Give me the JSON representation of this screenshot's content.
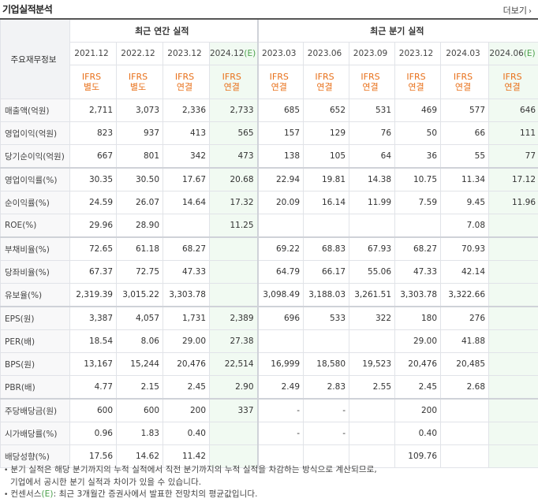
{
  "header": {
    "title": "기업실적분석",
    "more_label": "더보기",
    "more_icon": "chevron-right-icon"
  },
  "table": {
    "corner_label": "주요재무정보",
    "annual_group": "최근 연간 실적",
    "quarter_group": "최근 분기 실적",
    "annual_periods": [
      "2021.12",
      "2022.12",
      "2023.12"
    ],
    "annual_estimate_period": "2024.12",
    "quarter_periods": [
      "2023.03",
      "2023.06",
      "2023.09",
      "2023.12",
      "2024.03"
    ],
    "quarter_estimate_period": "2024.06",
    "estimate_mark": "(E)",
    "basis_top": "IFRS",
    "basis": [
      "별도",
      "별도",
      "연결",
      "연결",
      "연결",
      "연결",
      "연결",
      "연결",
      "연결",
      "연결"
    ],
    "rows": [
      {
        "label": "매출액(억원)",
        "values": [
          "2,711",
          "3,073",
          "2,336",
          "2,733",
          "685",
          "652",
          "531",
          "469",
          "577",
          "646"
        ]
      },
      {
        "label": "영업이익(억원)",
        "values": [
          "823",
          "937",
          "413",
          "565",
          "157",
          "129",
          "76",
          "50",
          "66",
          "111"
        ]
      },
      {
        "label": "당기순이익(억원)",
        "values": [
          "667",
          "801",
          "342",
          "473",
          "138",
          "105",
          "64",
          "36",
          "55",
          "77"
        ]
      },
      {
        "label": "영업이익률(%)",
        "values": [
          "30.35",
          "30.50",
          "17.67",
          "20.68",
          "22.94",
          "19.81",
          "14.38",
          "10.75",
          "11.34",
          "17.12"
        ]
      },
      {
        "label": "순이익률(%)",
        "values": [
          "24.59",
          "26.07",
          "14.64",
          "17.32",
          "20.09",
          "16.14",
          "11.99",
          "7.59",
          "9.45",
          "11.96"
        ]
      },
      {
        "label": "ROE(%)",
        "values": [
          "29.96",
          "28.90",
          "",
          "11.25",
          "",
          "",
          "",
          "",
          "7.08",
          ""
        ]
      },
      {
        "label": "부채비율(%)",
        "values": [
          "72.65",
          "61.18",
          "68.27",
          "",
          "69.22",
          "68.83",
          "67.93",
          "68.27",
          "70.93",
          ""
        ]
      },
      {
        "label": "당좌비율(%)",
        "values": [
          "67.37",
          "72.75",
          "47.33",
          "",
          "64.79",
          "66.17",
          "55.06",
          "47.33",
          "42.14",
          ""
        ]
      },
      {
        "label": "유보율(%)",
        "values": [
          "2,319.39",
          "3,015.22",
          "3,303.78",
          "",
          "3,098.49",
          "3,188.03",
          "3,261.51",
          "3,303.78",
          "3,322.66",
          ""
        ]
      },
      {
        "label": "EPS(원)",
        "values": [
          "3,387",
          "4,057",
          "1,731",
          "2,389",
          "696",
          "533",
          "322",
          "180",
          "276",
          ""
        ]
      },
      {
        "label": "PER(배)",
        "values": [
          "18.54",
          "8.06",
          "29.00",
          "27.38",
          "",
          "",
          "",
          "29.00",
          "41.88",
          ""
        ]
      },
      {
        "label": "BPS(원)",
        "values": [
          "13,167",
          "15,244",
          "20,476",
          "22,514",
          "16,999",
          "18,580",
          "19,523",
          "20,476",
          "20,485",
          ""
        ]
      },
      {
        "label": "PBR(배)",
        "values": [
          "4.77",
          "2.15",
          "2.45",
          "2.90",
          "2.49",
          "2.83",
          "2.55",
          "2.45",
          "2.68",
          ""
        ]
      },
      {
        "label": "주당배당금(원)",
        "values": [
          "600",
          "600",
          "200",
          "337",
          "-",
          "-",
          "",
          "200",
          "",
          ""
        ]
      },
      {
        "label": "시가배당률(%)",
        "values": [
          "0.96",
          "1.83",
          "0.40",
          "",
          "-",
          "-",
          "",
          "0.40",
          "",
          ""
        ]
      },
      {
        "label": "배당성향(%)",
        "values": [
          "17.56",
          "14.62",
          "11.42",
          "",
          "",
          "",
          "",
          "109.76",
          "",
          ""
        ]
      }
    ]
  },
  "notes": {
    "line1": "분기 실적은 해당 분기까지의 누적 실적에서 직전 분기까지의 누적 실적을 차감하는 방식으로 계산되므로,",
    "line2": "기업에서 공시한 분기 실적과 차이가 있을 수 있습니다.",
    "line3_prefix": "컨센서스",
    "line3_mark": "(E)",
    "line3_suffix": ": 최근 3개월간 증권사에서 발표한 전망치의 평균값입니다."
  }
}
